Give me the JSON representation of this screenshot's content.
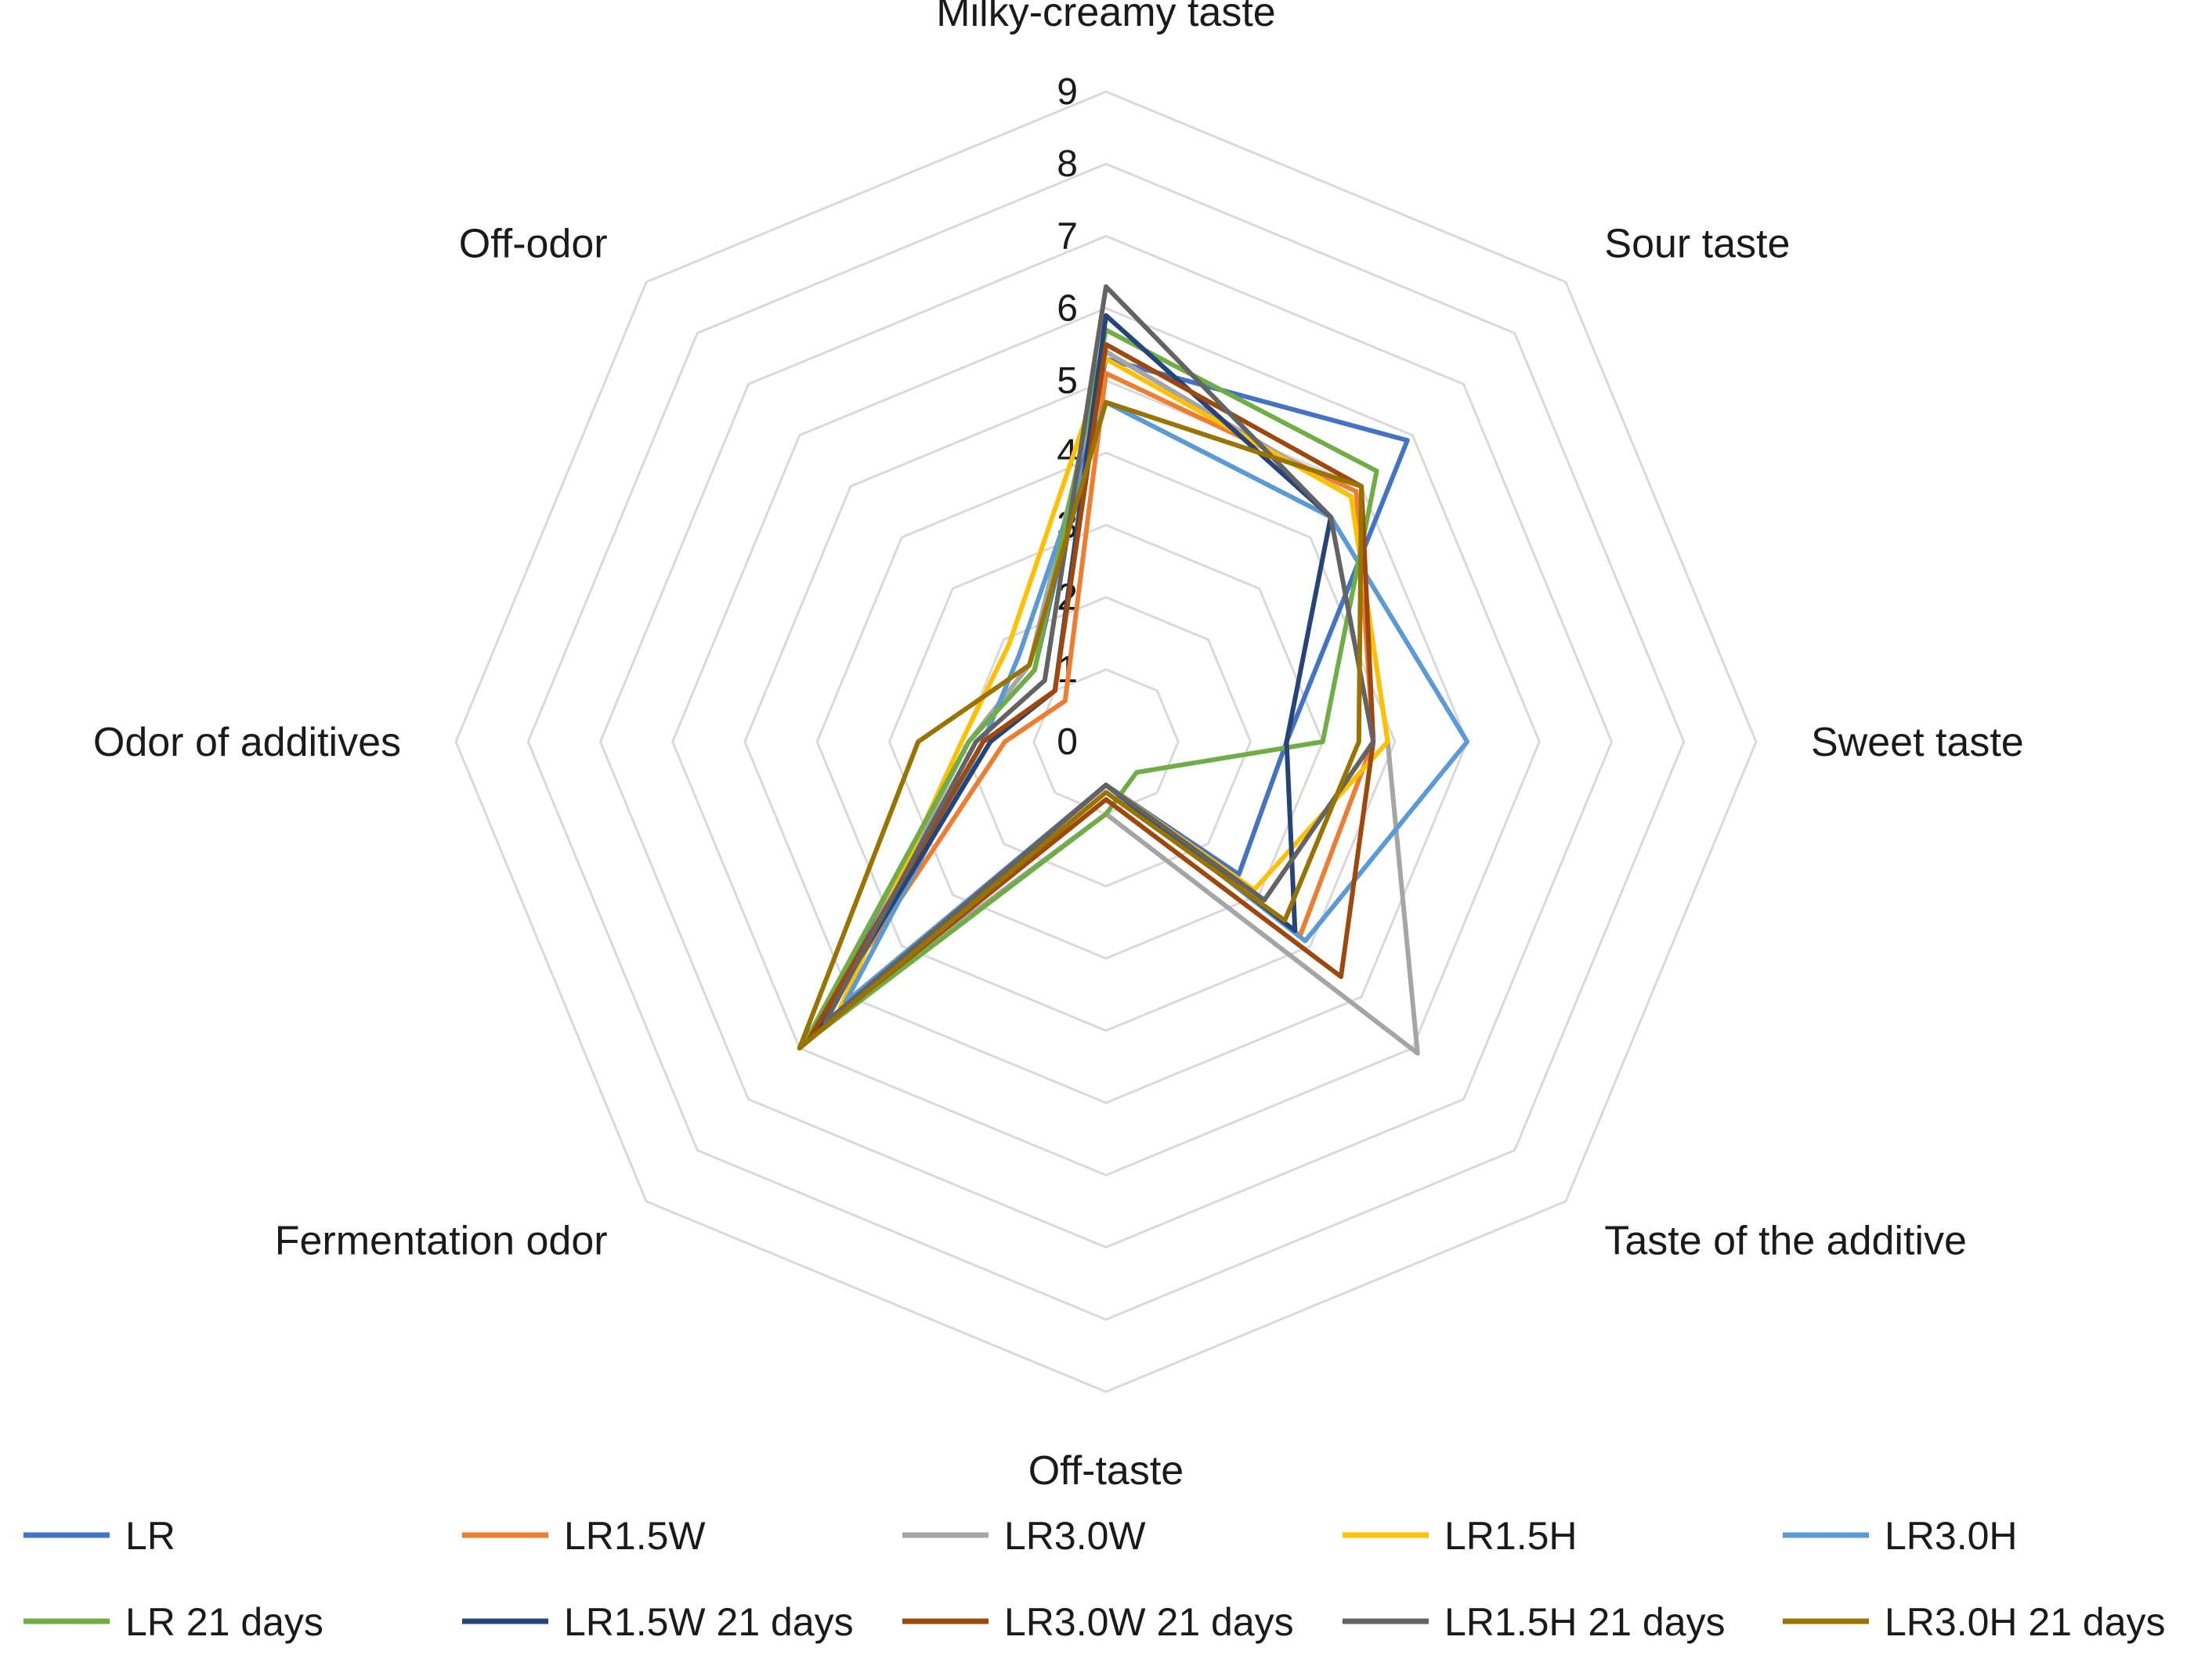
{
  "chart_data": {
    "type": "radar",
    "axes": [
      "Milky-creamy taste",
      "Sour taste",
      "Sweet taste",
      "Taste of the additive",
      "Off-taste",
      "Fermentation odor",
      "Odor of additives",
      "Off-odor"
    ],
    "ticks": [
      "0",
      "1",
      "2",
      "3",
      "4",
      "5",
      "6",
      "7",
      "8",
      "9"
    ],
    "rmin": 0,
    "rmax": 9,
    "grid": true,
    "legend_position": "bottom",
    "series": [
      {
        "name": "LR",
        "color": "#4472C4",
        "values": [
          5.3,
          5.9,
          2.5,
          2.6,
          0.6,
          5.7,
          1.9,
          1.4
        ]
      },
      {
        "name": "LR1.5W",
        "color": "#ED7D31",
        "values": [
          5.1,
          4.9,
          3.7,
          3.8,
          0.6,
          5.9,
          1.4,
          0.8
        ]
      },
      {
        "name": "LR3.0W",
        "color": "#A5A5A5",
        "values": [
          5.4,
          4.8,
          3.9,
          6.1,
          1.0,
          5.5,
          1.9,
          1.5
        ]
      },
      {
        "name": "LR1.5H",
        "color": "#FFC000",
        "values": [
          5.3,
          4.8,
          3.9,
          2.9,
          0.6,
          5.2,
          2.0,
          1.9
        ]
      },
      {
        "name": "LR3.0H",
        "color": "#5B9BD5",
        "values": [
          4.7,
          4.4,
          5.0,
          3.9,
          0.6,
          5.1,
          1.7,
          1.7
        ]
      },
      {
        "name": "LR 21 days",
        "color": "#70AD47",
        "values": [
          5.7,
          5.3,
          3.0,
          0.6,
          1.0,
          5.9,
          1.9,
          1.4
        ]
      },
      {
        "name": "LR1.5W 21 days",
        "color": "#264478",
        "values": [
          5.9,
          4.4,
          2.5,
          3.7,
          0.6,
          5.7,
          1.6,
          1.0
        ]
      },
      {
        "name": "LR3.0W 21 days",
        "color": "#9E480E",
        "values": [
          5.5,
          5.0,
          3.7,
          4.6,
          0.8,
          5.8,
          1.7,
          1.0
        ]
      },
      {
        "name": "LR1.5H 21 days",
        "color": "#636363",
        "values": [
          6.3,
          4.4,
          3.7,
          3.1,
          0.6,
          5.5,
          1.8,
          1.2
        ]
      },
      {
        "name": "LR3.0H 21 days",
        "color": "#997300",
        "values": [
          4.7,
          5.0,
          3.5,
          3.5,
          0.7,
          6.0,
          2.6,
          1.5
        ]
      }
    ]
  }
}
